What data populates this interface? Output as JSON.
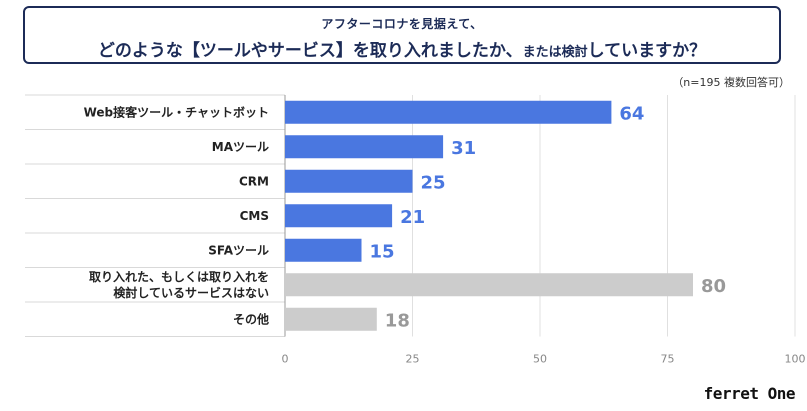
{
  "header": {
    "subtitle": "アフターコロナを見据えて、",
    "title_part1": "どのような【ツールやサービス】を取り入れましたか、",
    "title_part2": "または検討",
    "title_part3": "していますか？"
  },
  "note": "（n=195 複数回答可）",
  "logo": "ferret One",
  "chart_data": {
    "type": "bar",
    "orientation": "horizontal",
    "categories": [
      [
        "Web接客ツール・チャットボット"
      ],
      [
        "MAツール"
      ],
      [
        "CRM"
      ],
      [
        "CMS"
      ],
      [
        "SFAツール"
      ],
      [
        "取り入れた、もしくは取り入れを",
        "検討しているサービスはない"
      ],
      [
        "その他"
      ]
    ],
    "values": [
      64,
      31,
      25,
      21,
      15,
      80,
      18
    ],
    "bar_colors": [
      "#4a77e0",
      "#4a77e0",
      "#4a77e0",
      "#4a77e0",
      "#4a77e0",
      "#cccccc",
      "#cccccc"
    ],
    "label_colors": [
      "#4a77e0",
      "#4a77e0",
      "#4a77e0",
      "#4a77e0",
      "#4a77e0",
      "#999999",
      "#999999"
    ],
    "xlim": [
      0,
      100
    ],
    "xticks": [
      0,
      25,
      50,
      75,
      100
    ],
    "grid": true
  }
}
